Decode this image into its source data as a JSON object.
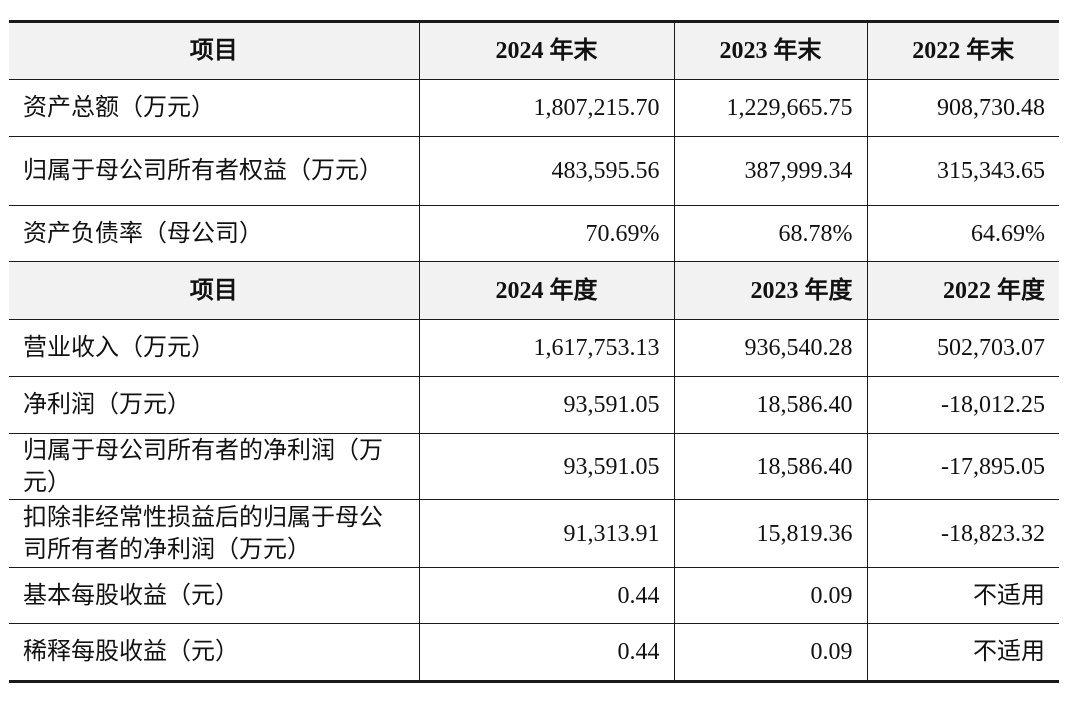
{
  "section1": {
    "headers": [
      "项目",
      "2024 年末",
      "2023 年末",
      "2022 年末"
    ],
    "rows": [
      {
        "label": "资产总额（万元）",
        "values": [
          "1,807,215.70",
          "1,229,665.75",
          "908,730.48"
        ]
      },
      {
        "label": "归属于母公司所有者权益（万元）",
        "values": [
          "483,595.56",
          "387,999.34",
          "315,343.65"
        ]
      },
      {
        "label": "资产负债率（母公司）",
        "values": [
          "70.69%",
          "68.78%",
          "64.69%"
        ]
      }
    ]
  },
  "section2": {
    "headers": [
      "项目",
      "2024 年度",
      "2023 年度",
      "2022 年度"
    ],
    "rows": [
      {
        "label": "营业收入（万元）",
        "values": [
          "1,617,753.13",
          "936,540.28",
          "502,703.07"
        ]
      },
      {
        "label": "净利润（万元）",
        "values": [
          "93,591.05",
          "18,586.40",
          "-18,012.25"
        ]
      },
      {
        "label": "归属于母公司所有者的净利润（万元）",
        "values": [
          "93,591.05",
          "18,586.40",
          "-17,895.05"
        ]
      },
      {
        "label": "扣除非经常性损益后的归属于母公司所有者的净利润（万元）",
        "values": [
          "91,313.91",
          "15,819.36",
          "-18,823.32"
        ]
      },
      {
        "label": "基本每股收益（元）",
        "values": [
          "0.44",
          "0.09",
          "不适用"
        ]
      },
      {
        "label": "稀释每股收益（元）",
        "values": [
          "0.44",
          "0.09",
          "不适用"
        ]
      }
    ]
  }
}
